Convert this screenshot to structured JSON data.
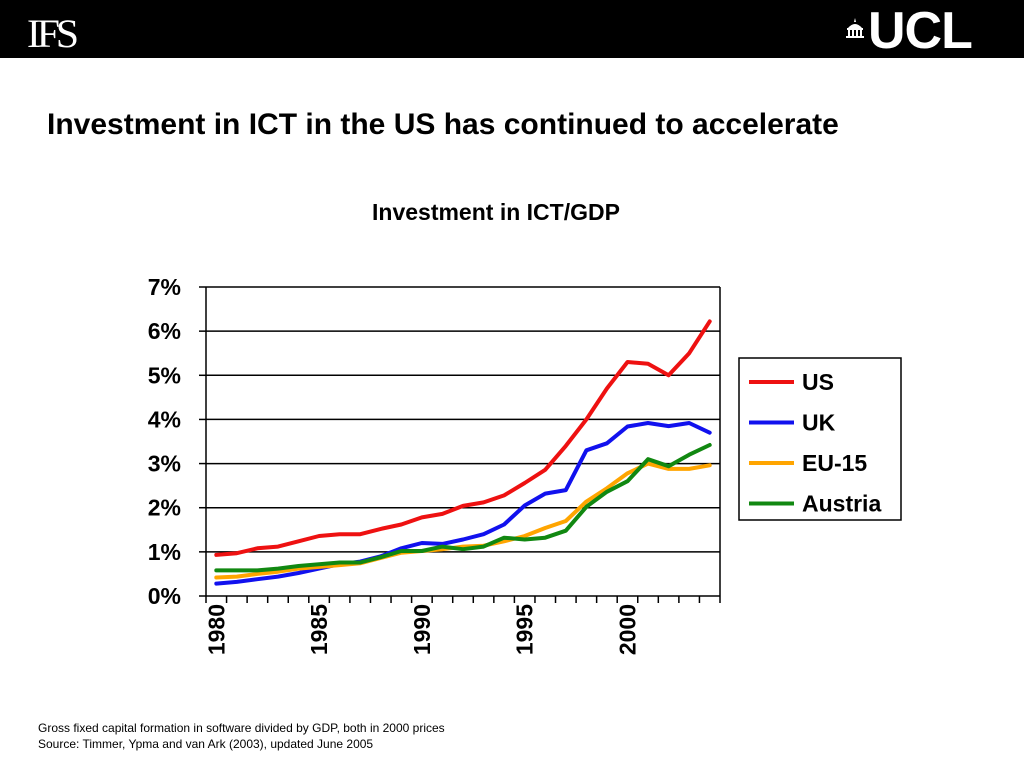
{
  "header": {
    "left_logo_text": "IFS",
    "right_logo_text": "UCL"
  },
  "slide_title": "Investment in ICT in the US has continued to accelerate",
  "notes": {
    "line1": "Gross fixed capital formation in software divided by GDP, both in 2000 prices",
    "line2": "Source: Timmer, Ypma and van Ark (2003), updated June 2005"
  },
  "chart_data": {
    "type": "line",
    "title": "Investment in ICT/GDP",
    "xlabel": "",
    "ylabel": "",
    "xlim": [
      1980,
      2004
    ],
    "ylim": [
      0,
      0.07
    ],
    "y_ticks": [
      0,
      0.01,
      0.02,
      0.03,
      0.04,
      0.05,
      0.06,
      0.07
    ],
    "y_tick_labels": [
      "0%",
      "1%",
      "2%",
      "3%",
      "4%",
      "5%",
      "6%",
      "7%"
    ],
    "x_tick_labels": [
      "1980",
      "1985",
      "1990",
      "1995",
      "2000"
    ],
    "x_tick_values": [
      1980,
      1985,
      1990,
      1995,
      2000
    ],
    "grid": "horizontal",
    "legend_position": "right",
    "x": [
      1980,
      1981,
      1982,
      1983,
      1984,
      1985,
      1986,
      1987,
      1988,
      1989,
      1990,
      1991,
      1992,
      1993,
      1994,
      1995,
      1996,
      1997,
      1998,
      1999,
      2000,
      2001,
      2002,
      2003,
      2004
    ],
    "series": [
      {
        "name": "US",
        "color": "#ee1111",
        "values": [
          0.0093,
          0.0097,
          0.0108,
          0.0112,
          0.0124,
          0.0136,
          0.014,
          0.014,
          0.0152,
          0.0162,
          0.0178,
          0.0186,
          0.0204,
          0.0212,
          0.0228,
          0.0256,
          0.0286,
          0.034,
          0.04,
          0.047,
          0.053,
          0.0526,
          0.05,
          0.055,
          0.0622
        ]
      },
      {
        "name": "UK",
        "color": "#1111ee",
        "values": [
          0.0028,
          0.0032,
          0.0038,
          0.0044,
          0.0052,
          0.0062,
          0.0072,
          0.0078,
          0.009,
          0.0108,
          0.012,
          0.0118,
          0.0128,
          0.014,
          0.0162,
          0.0205,
          0.0232,
          0.024,
          0.033,
          0.0346,
          0.0384,
          0.0392,
          0.0385,
          0.0392,
          0.037
        ]
      },
      {
        "name": "EU-15",
        "color": "#ffa500",
        "values": [
          0.0042,
          0.0044,
          0.005,
          0.0055,
          0.0062,
          0.0066,
          0.007,
          0.0074,
          0.0086,
          0.0098,
          0.0102,
          0.0106,
          0.0112,
          0.0114,
          0.0124,
          0.0136,
          0.0154,
          0.017,
          0.0214,
          0.0244,
          0.0278,
          0.03,
          0.0288,
          0.0288,
          0.0296
        ]
      },
      {
        "name": "Austria",
        "color": "#118811",
        "values": [
          0.0058,
          0.0058,
          0.0058,
          0.0062,
          0.0068,
          0.0072,
          0.0076,
          0.0076,
          0.0088,
          0.0102,
          0.0102,
          0.0112,
          0.0106,
          0.0112,
          0.0132,
          0.0128,
          0.0132,
          0.0148,
          0.0202,
          0.0236,
          0.026,
          0.031,
          0.0294,
          0.032,
          0.0342
        ]
      }
    ]
  }
}
